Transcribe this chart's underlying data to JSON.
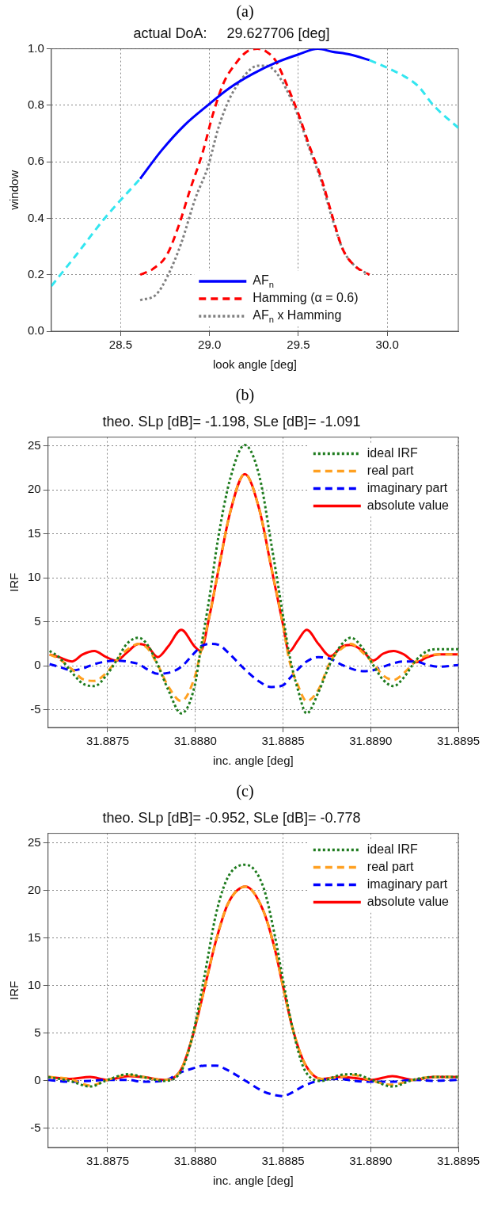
{
  "chart_data": [
    {
      "type": "line",
      "title": "actual DoA:     29.627706 [deg]",
      "xlabel": "look angle [deg]",
      "ylabel": "window",
      "annotations": [
        "(a)"
      ],
      "xlim": [
        28.11,
        30.4
      ],
      "xticks": [
        28.5,
        {
          "value": 29,
          "label": "29.0"
        },
        29.5,
        {
          "value": 30,
          "label": "30.0"
        }
      ],
      "ylim": [
        0,
        1
      ],
      "yticks": [
        {
          "value": 0,
          "label": "0.0"
        },
        0.2,
        0.4,
        0.6,
        0.8,
        {
          "value": 1,
          "label": "1.0"
        }
      ],
      "grid": true,
      "legend": "bottom",
      "series": [
        {
          "color": "#33e6f0",
          "line_style": "dashed",
          "x": [
            28.11,
            28.25,
            28.41,
            28.61,
            29.25,
            29.9,
            30.01,
            30.17,
            30.26,
            30.4
          ],
          "values": [
            0.16,
            0.27,
            0.4,
            0.54,
            null,
            0.96,
            0.93,
            0.87,
            0.8,
            0.72
          ]
        },
        {
          "name": "AF$_{n}$",
          "color": "#0000ff",
          "line_style": "solid",
          "x": [
            28.61,
            28.73,
            28.86,
            28.99,
            29.11,
            29.24,
            29.37,
            29.5,
            29.61,
            29.69,
            29.79,
            29.9
          ],
          "values": [
            0.54,
            0.64,
            0.73,
            0.8,
            0.86,
            0.91,
            0.95,
            0.98,
            1.0,
            0.99,
            0.98,
            0.96
          ]
        },
        {
          "name": "Hamming (α = 0.6)",
          "color": "#ff0000",
          "line_style": "dashed",
          "x": [
            28.61,
            28.68,
            28.76,
            28.83,
            28.89,
            28.96,
            29.02,
            29.08,
            29.15,
            29.21,
            29.27,
            29.32,
            29.37,
            29.43,
            29.5,
            29.56,
            29.63,
            29.69,
            29.75,
            29.82,
            29.9
          ],
          "values": [
            0.2,
            0.22,
            0.27,
            0.38,
            0.5,
            0.63,
            0.77,
            0.88,
            0.95,
            0.99,
            1.0,
            0.99,
            0.96,
            0.88,
            0.77,
            0.66,
            0.54,
            0.41,
            0.29,
            0.23,
            0.2
          ]
        },
        {
          "name": "AF$_{n}$ x Hamming",
          "color": "#808080",
          "line_style": "dotted",
          "x": [
            28.61,
            28.7,
            28.76,
            28.84,
            28.92,
            28.99,
            29.05,
            29.11,
            29.19,
            29.27,
            29.32,
            29.37,
            29.43,
            29.5,
            29.56,
            29.63,
            29.69,
            29.75,
            29.82,
            29.9
          ],
          "values": [
            0.11,
            0.13,
            0.19,
            0.31,
            0.47,
            0.58,
            0.72,
            0.82,
            0.9,
            0.94,
            0.94,
            0.92,
            0.86,
            0.76,
            0.65,
            0.53,
            0.4,
            0.29,
            0.23,
            0.2
          ]
        }
      ]
    },
    {
      "type": "line",
      "title": "theo. SLp [dB]= -1.198, SLe [dB]= -1.091",
      "xlabel": "inc. angle [deg]",
      "ylabel": "IRF",
      "annotations": [
        "(b)"
      ],
      "xlim": [
        31.88716,
        31.8895
      ],
      "xticks": [
        31.8875,
        {
          "value": 31.888,
          "label": "31.8880"
        },
        31.8885,
        {
          "value": 31.889,
          "label": "31.8890"
        },
        31.8895
      ],
      "ylim": [
        -7,
        26
      ],
      "yticks": [
        -5,
        0,
        5,
        10,
        15,
        20,
        25
      ],
      "grid": true,
      "legend": "top right",
      "x": [
        31.887169,
        31.887222,
        31.887298,
        31.887357,
        31.887424,
        31.887492,
        31.88755,
        31.887609,
        31.887677,
        31.887727,
        31.887786,
        31.887845,
        31.88792,
        31.887996,
        31.88803,
        31.88808,
        31.888131,
        31.888198,
        31.888282,
        31.888366,
        31.888433,
        31.888501,
        31.888534,
        31.888585,
        31.888635,
        31.888702,
        31.88877,
        31.888837,
        31.888887,
        31.888955,
        31.889014,
        31.889072,
        31.889131,
        31.88919,
        31.889257,
        31.889325,
        31.889392,
        31.8895
      ],
      "series": [
        {
          "name": "ideal IRF",
          "color": "#1e7b1e",
          "line_style": "dotted",
          "values": [
            1.7,
            1.0,
            -0.8,
            -2.0,
            -2.3,
            -1.1,
            0.6,
            2.5,
            3.2,
            2.4,
            0.1,
            -2.7,
            -5.4,
            -2.3,
            1.8,
            7.7,
            14.6,
            21.2,
            25.1,
            21.5,
            13.9,
            5.6,
            1.5,
            -2.7,
            -5.4,
            -3.0,
            0.3,
            2.5,
            3.2,
            2.0,
            0.1,
            -1.6,
            -2.3,
            -1.3,
            0.6,
            1.7,
            1.9,
            1.9
          ]
        },
        {
          "name": "real part",
          "color": "#ffa020",
          "line_style": "dashed",
          "values": [
            1.3,
            0.8,
            -0.4,
            -1.5,
            -1.7,
            -0.8,
            0.6,
            1.8,
            2.5,
            2.0,
            0.1,
            -2.3,
            -4.0,
            -1.3,
            1.5,
            5.6,
            10.8,
            17.4,
            21.8,
            17.7,
            11.2,
            4.6,
            0.8,
            -2.2,
            -4.0,
            -2.7,
            0.5,
            2.0,
            2.5,
            1.5,
            0.3,
            -1.1,
            -1.6,
            -0.8,
            0.5,
            1.2,
            1.3,
            1.3
          ]
        },
        {
          "name": "imaginary part",
          "color": "#0000ff",
          "line_style": "dashed",
          "values": [
            0.2,
            -0.1,
            -0.5,
            -0.3,
            0.2,
            0.5,
            0.6,
            0.5,
            0.2,
            -0.4,
            -0.9,
            -0.8,
            -0.1,
            1.5,
            2.2,
            2.5,
            2.4,
            1.3,
            -0.4,
            -1.8,
            -2.4,
            -2.2,
            -1.5,
            -0.4,
            0.5,
            1.0,
            0.8,
            0.1,
            -0.3,
            -0.6,
            -0.5,
            -0.1,
            0.3,
            0.5,
            0.5,
            0.1,
            -0.1,
            0.1
          ]
        },
        {
          "name": "absolute value",
          "color": "#ff0000",
          "line_style": "solid",
          "values": [
            1.3,
            1.0,
            0.5,
            1.3,
            1.7,
            1.0,
            0.6,
            1.5,
            2.5,
            2.2,
            1.0,
            2.2,
            4.1,
            2.2,
            1.7,
            5.6,
            10.8,
            17.4,
            21.8,
            17.7,
            11.2,
            4.6,
            1.6,
            2.9,
            4.1,
            2.5,
            1.1,
            2.2,
            2.4,
            1.7,
            0.6,
            1.4,
            1.7,
            1.3,
            0.4,
            1.0,
            1.3,
            1.3
          ]
        }
      ]
    },
    {
      "type": "line",
      "title": "theo. SLp [dB]= -0.952, SLe [dB]= -0.778",
      "xlabel": "inc. angle [deg]",
      "ylabel": "IRF",
      "annotations": [
        "(c)"
      ],
      "xlim": [
        31.88716,
        31.8895
      ],
      "xticks": [
        31.8875,
        {
          "value": 31.888,
          "label": "31.8880"
        },
        31.8885,
        {
          "value": 31.889,
          "label": "31.8890"
        },
        31.8895
      ],
      "ylim": [
        -7,
        26
      ],
      "yticks": [
        -5,
        0,
        5,
        10,
        15,
        20,
        25
      ],
      "grid": true,
      "legend": "top right",
      "x": [
        31.887162,
        31.887282,
        31.8874,
        31.8875,
        31.887617,
        31.887701,
        31.887818,
        31.887919,
        31.887985,
        31.888052,
        31.888119,
        31.888186,
        31.888287,
        31.888387,
        31.888454,
        31.888499,
        31.888555,
        31.888622,
        31.888722,
        31.888822,
        31.888906,
        31.889007,
        31.889124,
        31.889241,
        31.889358,
        31.8895
      ],
      "series": [
        {
          "name": "ideal IRF",
          "color": "#1e7b1e",
          "line_style": "dotted",
          "values": [
            0.4,
            0,
            -0.6,
            0.1,
            0.7,
            0.4,
            0,
            1.0,
            4.8,
            11.0,
            17.6,
            21.4,
            22.7,
            20.4,
            15.2,
            10.7,
            5.5,
            1.2,
            0,
            0.6,
            0.7,
            0.1,
            -0.6,
            0.1,
            0.4,
            0.4
          ]
        },
        {
          "name": "real part",
          "color": "#ffa020",
          "line_style": "dashed",
          "values": [
            0.4,
            0.2,
            -0.5,
            0.1,
            0.6,
            0.4,
            0.1,
            1.2,
            4.7,
            9.7,
            14.8,
            18.6,
            20.4,
            17.9,
            13.8,
            10.0,
            5.5,
            1.9,
            0.2,
            0.4,
            0.6,
            0,
            -0.4,
            0.1,
            0.4,
            0.4
          ]
        },
        {
          "name": "imaginary part",
          "color": "#0000ff",
          "line_style": "dashed",
          "values": [
            0.1,
            -0.1,
            0,
            0.1,
            0.1,
            -0.1,
            0,
            0.9,
            1.3,
            1.6,
            1.6,
            1.1,
            0,
            -1.1,
            -1.5,
            -1.6,
            -1.2,
            -0.5,
            0.1,
            0.2,
            0,
            -0.1,
            -0.1,
            0.1,
            0,
            0.1
          ]
        },
        {
          "name": "absolute value",
          "color": "#ff0000",
          "line_style": "solid",
          "values": [
            0.4,
            0.2,
            0.4,
            0.1,
            0.5,
            0.4,
            0.1,
            1.2,
            4.7,
            9.7,
            14.8,
            18.6,
            20.4,
            17.9,
            13.8,
            10.0,
            5.5,
            1.9,
            0.2,
            0.4,
            0.3,
            0.1,
            0.5,
            0.1,
            0.4,
            0.4
          ]
        }
      ]
    }
  ]
}
